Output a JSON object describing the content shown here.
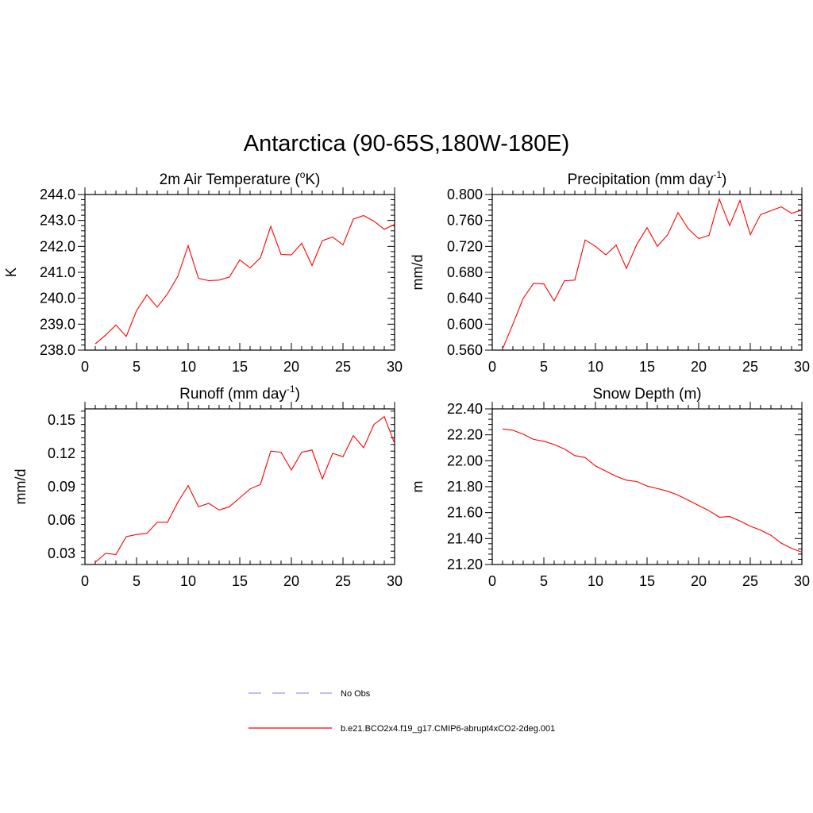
{
  "title": "Antarctica (90-65S,180W-180E)",
  "legend": [
    {
      "label": "No Obs",
      "color": "#9999ee",
      "dash": true
    },
    {
      "label": "b.e21.BCO2x4.f19_g17.CMIP6-abrupt4xCO2-2deg.001",
      "color": "#ff0000",
      "dash": false
    }
  ],
  "chart_data": [
    {
      "type": "line",
      "title": "2m Air Temperature (",
      "title_sup": "o",
      "title_after": "K)",
      "ylabel": "K",
      "xlim": [
        0,
        30
      ],
      "ylim": [
        238.0,
        244.0
      ],
      "x_ticks": [
        0,
        5,
        10,
        15,
        20,
        25,
        30
      ],
      "y_ticks": [
        "238.0",
        "239.0",
        "240.0",
        "241.0",
        "242.0",
        "243.0",
        "244.0"
      ],
      "x": [
        1,
        2,
        3,
        4,
        5,
        6,
        7,
        8,
        9,
        10,
        11,
        12,
        13,
        14,
        15,
        16,
        17,
        18,
        19,
        20,
        21,
        22,
        23,
        24,
        25,
        26,
        27,
        28,
        29,
        30
      ],
      "series": [
        {
          "color": "#ff0000",
          "values": [
            238.24,
            238.58,
            238.97,
            238.53,
            239.52,
            240.13,
            239.66,
            240.17,
            240.85,
            242.03,
            240.77,
            240.68,
            240.7,
            240.82,
            241.48,
            241.17,
            241.56,
            242.77,
            241.69,
            241.67,
            242.12,
            241.26,
            242.22,
            242.36,
            242.06,
            243.05,
            243.19,
            242.97,
            242.66,
            242.85
          ]
        }
      ]
    },
    {
      "type": "line",
      "title": "Precipitation (mm day",
      "title_sup": "-1",
      "title_after": ")",
      "ylabel": "mm/d",
      "xlim": [
        0,
        30
      ],
      "ylim": [
        0.56,
        0.8
      ],
      "x_ticks": [
        0,
        5,
        10,
        15,
        20,
        25,
        30
      ],
      "y_ticks": [
        "0.560",
        "0.600",
        "0.640",
        "0.680",
        "0.720",
        "0.760",
        "0.800"
      ],
      "x": [
        1,
        2,
        3,
        4,
        5,
        6,
        7,
        8,
        9,
        10,
        11,
        12,
        13,
        14,
        15,
        16,
        17,
        18,
        19,
        20,
        21,
        22,
        23,
        24,
        25,
        26,
        27,
        28,
        29,
        30
      ],
      "series": [
        {
          "color": "#ff0000",
          "values": [
            0.562,
            0.6,
            0.64,
            0.663,
            0.662,
            0.636,
            0.667,
            0.668,
            0.73,
            0.72,
            0.707,
            0.722,
            0.686,
            0.723,
            0.749,
            0.72,
            0.738,
            0.772,
            0.747,
            0.732,
            0.737,
            0.793,
            0.752,
            0.791,
            0.738,
            0.769,
            0.775,
            0.781,
            0.771,
            0.776
          ]
        }
      ]
    },
    {
      "type": "line",
      "title": "Runoff (mm day",
      "title_sup": "-1",
      "title_after": ")",
      "ylabel": "mm/d",
      "xlim": [
        0,
        30
      ],
      "ylim": [
        0.02,
        0.16
      ],
      "x_ticks": [
        0,
        5,
        10,
        15,
        20,
        25,
        30
      ],
      "y_ticks": [
        "0.03",
        "0.06",
        "0.09",
        "0.12",
        "0.15"
      ],
      "y_tick_values": [
        0.03,
        0.06,
        0.09,
        0.12,
        0.15
      ],
      "x": [
        1,
        2,
        3,
        4,
        5,
        6,
        7,
        8,
        9,
        10,
        11,
        12,
        13,
        14,
        15,
        16,
        17,
        18,
        19,
        20,
        21,
        22,
        23,
        24,
        25,
        26,
        27,
        28,
        29,
        30
      ],
      "series": [
        {
          "color": "#ff0000",
          "values": [
            0.022,
            0.03,
            0.029,
            0.045,
            0.047,
            0.048,
            0.058,
            0.058,
            0.076,
            0.091,
            0.072,
            0.075,
            0.069,
            0.072,
            0.08,
            0.088,
            0.092,
            0.122,
            0.121,
            0.105,
            0.121,
            0.123,
            0.097,
            0.12,
            0.117,
            0.136,
            0.125,
            0.146,
            0.153,
            0.129
          ]
        }
      ]
    },
    {
      "type": "line",
      "title": "Snow Depth (m)",
      "title_sup": "",
      "title_after": "",
      "ylabel": "m",
      "xlim": [
        0,
        30
      ],
      "ylim": [
        21.2,
        22.4
      ],
      "x_ticks": [
        0,
        5,
        10,
        15,
        20,
        25,
        30
      ],
      "y_ticks": [
        "21.20",
        "21.40",
        "21.60",
        "21.80",
        "22.00",
        "22.20",
        "22.40"
      ],
      "x": [
        1,
        2,
        3,
        4,
        5,
        6,
        7,
        8,
        9,
        10,
        11,
        12,
        13,
        14,
        15,
        16,
        17,
        18,
        19,
        20,
        21,
        22,
        23,
        24,
        25,
        26,
        27,
        28,
        29,
        30
      ],
      "series": [
        {
          "color": "#ff0000",
          "values": [
            22.245,
            22.235,
            22.205,
            22.165,
            22.15,
            22.125,
            22.09,
            22.04,
            22.025,
            21.96,
            21.92,
            21.88,
            21.85,
            21.84,
            21.805,
            21.785,
            21.765,
            21.735,
            21.695,
            21.655,
            21.615,
            21.565,
            21.57,
            21.535,
            21.495,
            21.465,
            21.425,
            21.365,
            21.325,
            21.295
          ]
        }
      ]
    }
  ]
}
